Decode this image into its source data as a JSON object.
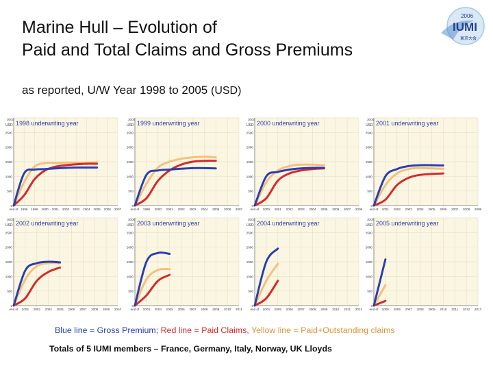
{
  "header": {
    "title_line1": "Marine Hull – Evolution of",
    "title_line2": "Paid and Total Claims and Gross Premiums",
    "subtitle_main": "as reported, U/W Year 1998 to 2005",
    "subtitle_unit": "(USD)"
  },
  "logo": {
    "year": "2006",
    "text": "IUMI",
    "subtext": "東京大会"
  },
  "colors": {
    "gross_premium": "#2a3eb1",
    "paid_claims": "#d42a2a",
    "paid_outstanding": "#f5c07a",
    "panel_bg": "#fbf6e2",
    "grid": "#e8e2c8",
    "label": "#2a3eb1"
  },
  "legend": {
    "blue_text": "Blue line = Gross Premium;",
    "red_text": "Red line = Paid Claims,",
    "yellow_text": "Yellow line = Paid+Outstanding claims"
  },
  "footer": {
    "text": "Totals of 5 IUMI members –  France, Germany, Italy, Norway, UK Lloyds"
  },
  "chart_data": [
    {
      "type": "line",
      "title": "1998 underwriting year",
      "ylabel": "USD",
      "ylim": [
        0,
        3000
      ],
      "yticks": [
        "0",
        "500",
        "1000",
        "1500",
        "2000",
        "2500",
        "3000"
      ],
      "xticks": [
        "end of",
        "1998",
        "1999",
        "2000",
        "2001",
        "2002",
        "2003",
        "2004",
        "2005",
        "2006",
        "2007"
      ],
      "series": [
        {
          "name": "Gross Premium",
          "values": [
            0,
            1100,
            1230,
            1250,
            1270,
            1290,
            1300,
            1300,
            1300
          ]
        },
        {
          "name": "Paid+Outstanding claims",
          "values": [
            0,
            800,
            1330,
            1450,
            1460,
            1470,
            1470,
            1470,
            1480
          ]
        },
        {
          "name": "Paid Claims",
          "values": [
            0,
            350,
            900,
            1200,
            1330,
            1380,
            1410,
            1430,
            1430
          ]
        }
      ]
    },
    {
      "type": "line",
      "title": "1999 underwriting year",
      "ylabel": "USD",
      "ylim": [
        0,
        3000
      ],
      "yticks": [
        "0",
        "500",
        "1000",
        "1500",
        "2000",
        "2500",
        "3000"
      ],
      "xticks": [
        "end of",
        "1999",
        "2000",
        "2001",
        "2002",
        "2003",
        "2004",
        "2005",
        "2006",
        "2007"
      ],
      "series": [
        {
          "name": "Gross Premium",
          "values": [
            0,
            1050,
            1200,
            1230,
            1260,
            1280,
            1280,
            1270
          ]
        },
        {
          "name": "Paid+Outstanding claims",
          "values": [
            0,
            750,
            1300,
            1500,
            1600,
            1650,
            1670,
            1650
          ]
        },
        {
          "name": "Paid Claims",
          "values": [
            0,
            250,
            850,
            1200,
            1400,
            1500,
            1530,
            1530
          ]
        }
      ]
    },
    {
      "type": "line",
      "title": "2000 underwriting year",
      "ylabel": "USD",
      "ylim": [
        0,
        3000
      ],
      "yticks": [
        "0",
        "500",
        "1000",
        "1500",
        "2000",
        "2500",
        "3000"
      ],
      "xticks": [
        "end of",
        "2000",
        "2001",
        "2002",
        "2003",
        "2004",
        "2005",
        "2006",
        "2007",
        "2008"
      ],
      "series": [
        {
          "name": "Gross Premium",
          "values": [
            0,
            1000,
            1150,
            1230,
            1270,
            1290,
            1290
          ]
        },
        {
          "name": "Paid+Outstanding claims",
          "values": [
            0,
            800,
            1200,
            1350,
            1400,
            1400,
            1380
          ]
        },
        {
          "name": "Paid Claims",
          "values": [
            0,
            250,
            850,
            1100,
            1200,
            1250,
            1270
          ]
        }
      ]
    },
    {
      "type": "line",
      "title": "2001 underwriting year",
      "ylabel": "USD",
      "ylim": [
        0,
        3000
      ],
      "yticks": [
        "0",
        "500",
        "1000",
        "1500",
        "2000",
        "2500",
        "3000"
      ],
      "xticks": [
        "end of",
        "2001",
        "2002",
        "2003",
        "2004",
        "2005",
        "2006",
        "2007",
        "2008",
        "2009"
      ],
      "series": [
        {
          "name": "Gross Premium",
          "values": [
            0,
            1000,
            1250,
            1350,
            1380,
            1380,
            1370
          ]
        },
        {
          "name": "Paid+Outstanding claims",
          "values": [
            0,
            700,
            1100,
            1250,
            1280,
            1270,
            1260
          ]
        },
        {
          "name": "Paid Claims",
          "values": [
            0,
            200,
            700,
            950,
            1050,
            1080,
            1100
          ]
        }
      ]
    },
    {
      "type": "line",
      "title": "2002 underwriting year",
      "ylabel": "USD",
      "ylim": [
        0,
        3000
      ],
      "yticks": [
        "0",
        "500",
        "1000",
        "1500",
        "2000",
        "2500",
        "3000"
      ],
      "xticks": [
        "end of",
        "2002",
        "2003",
        "2004",
        "2005",
        "2006",
        "2007",
        "2008",
        "2009",
        "2010"
      ],
      "series": [
        {
          "name": "Gross Premium",
          "values": [
            0,
            1200,
            1450,
            1500,
            1480
          ]
        },
        {
          "name": "Paid+Outstanding claims",
          "values": [
            0,
            900,
            1350,
            1450,
            1450
          ]
        },
        {
          "name": "Paid Claims",
          "values": [
            0,
            250,
            850,
            1150,
            1300
          ]
        }
      ]
    },
    {
      "type": "line",
      "title": "2003 underwriting year",
      "ylabel": "USD",
      "ylim": [
        0,
        3000
      ],
      "yticks": [
        "0",
        "500",
        "1000",
        "1500",
        "2000",
        "2500",
        "3000"
      ],
      "xticks": [
        "end of",
        "2003",
        "2004",
        "2005",
        "2006",
        "2007",
        "2008",
        "2009",
        "2010",
        "2011"
      ],
      "series": [
        {
          "name": "Gross Premium",
          "values": [
            0,
            1500,
            1800,
            1770
          ]
        },
        {
          "name": "Paid+Outstanding claims",
          "values": [
            0,
            900,
            1220,
            1250
          ]
        },
        {
          "name": "Paid Claims",
          "values": [
            0,
            350,
            850,
            1050
          ]
        }
      ]
    },
    {
      "type": "line",
      "title": "2004 underwriting year",
      "ylabel": "USD",
      "ylim": [
        0,
        3000
      ],
      "yticks": [
        "0",
        "500",
        "1000",
        "1500",
        "2000",
        "2500",
        "3000"
      ],
      "xticks": [
        "end of",
        "2004",
        "2005",
        "2006",
        "2007",
        "2008",
        "2009",
        "2010",
        "2011",
        "2012"
      ],
      "series": [
        {
          "name": "Gross Premium",
          "values": [
            0,
            1500,
            1950
          ]
        },
        {
          "name": "Paid+Outstanding claims",
          "values": [
            0,
            850,
            1430
          ]
        },
        {
          "name": "Paid Claims",
          "values": [
            0,
            250,
            850
          ]
        }
      ]
    },
    {
      "type": "line",
      "title": "2005 underwriting year",
      "ylabel": "USD",
      "ylim": [
        0,
        3000
      ],
      "yticks": [
        "0",
        "500",
        "1000",
        "1500",
        "2000",
        "2500",
        "3000"
      ],
      "xticks": [
        "end of",
        "2005",
        "2006",
        "2007",
        "2008",
        "2009",
        "2010",
        "2011",
        "2012",
        "2013"
      ],
      "series": [
        {
          "name": "Gross Premium",
          "values": [
            0,
            1580
          ]
        },
        {
          "name": "Paid+Outstanding claims",
          "values": [
            0,
            700
          ]
        },
        {
          "name": "Paid Claims",
          "values": [
            0,
            160
          ]
        }
      ]
    }
  ]
}
